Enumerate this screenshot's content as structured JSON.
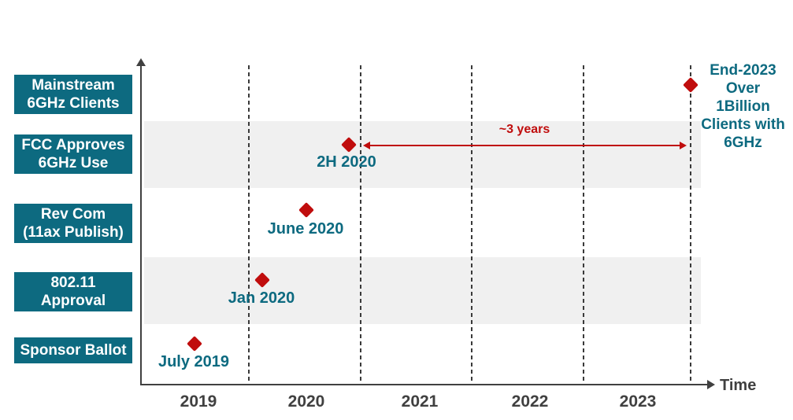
{
  "colors": {
    "teal": "#0d6a80",
    "red": "#c00d0d",
    "band": "#f0f0f0",
    "axis": "#404040"
  },
  "chart_data": {
    "type": "scatter",
    "subtype": "milestone-timeline",
    "xlabel": "Time",
    "x_ticks": [
      "2019",
      "2020",
      "2021",
      "2022",
      "2023"
    ],
    "x_range": [
      2018.75,
      2024.1
    ],
    "gridlines": "vertical-dashed-at-year-boundaries",
    "marker": {
      "shape": "diamond",
      "color": "#c00d0d"
    },
    "rows_top_to_bottom": [
      "Mainstream 6GHz Clients",
      "FCC Approves 6GHz Use",
      "Rev Com (11ax Publish)",
      "802.11 Approval",
      "Sponsor Ballot"
    ],
    "shaded_rows": [
      "FCC Approves 6GHz Use",
      "802.11 Approval"
    ],
    "milestones": [
      {
        "row": "Sponsor Ballot",
        "label": "July 2019",
        "x": 2019.5
      },
      {
        "row": "802.11 Approval",
        "label": "Jan 2020",
        "x": 2020.1
      },
      {
        "row": "Rev Com (11ax Publish)",
        "label": "June 2020",
        "x": 2020.5
      },
      {
        "row": "FCC Approves 6GHz Use",
        "label": "2H 2020",
        "x": 2020.85
      },
      {
        "row": "Mainstream 6GHz Clients",
        "label": "End-2023",
        "x": 2023.95
      }
    ],
    "annotations": [
      {
        "type": "double-arrow",
        "label": "~3 years",
        "from_x": 2021.0,
        "to_x": 2023.95,
        "at_row": "FCC Approves 6GHz Use"
      },
      {
        "type": "text-callout",
        "label": "End-2023 Over 1Billion Clients with 6GHz",
        "at_row": "Mainstream 6GHz Clients"
      }
    ]
  },
  "row_boxes": [
    "Mainstream\n6GHz Clients",
    "FCC Approves\n6GHz Use",
    "Rev Com\n(11ax Publish)",
    "802.11\nApproval",
    "Sponsor Ballot"
  ],
  "callout": "End-2023\nOver\n1Billion\nClients with\n6GHz",
  "arrow_label": "~3 years",
  "axis": {
    "years": [
      "2019",
      "2020",
      "2021",
      "2022",
      "2023"
    ],
    "label": "Time"
  }
}
